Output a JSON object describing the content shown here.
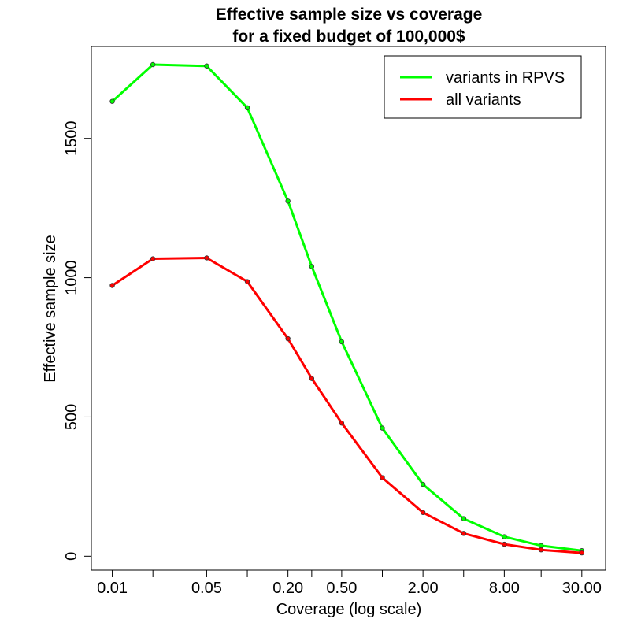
{
  "chart_data": {
    "type": "line",
    "title": "Effective sample size vs coverage",
    "subtitle": "for a fixed budget of 100,000$",
    "xlabel": "Coverage (log scale)",
    "ylabel": "Effective sample size",
    "x_scale": "log",
    "x": [
      0.01,
      0.02,
      0.05,
      0.1,
      0.2,
      0.3,
      0.5,
      1,
      2,
      4,
      8,
      15,
      30
    ],
    "xticks": [
      0.01,
      0.02,
      0.05,
      0.1,
      0.2,
      0.3,
      0.5,
      1,
      2,
      4,
      8,
      15,
      30
    ],
    "xtick_labels": [
      "0.01",
      "",
      "0.05",
      "",
      "0.20",
      "",
      "0.50",
      "",
      "2.00",
      "",
      "8.00",
      "",
      "30.00"
    ],
    "xlim": [
      0.007,
      45
    ],
    "ylim": [
      -50,
      1830
    ],
    "yticks": [
      0,
      500,
      1000,
      1500
    ],
    "ytick_labels": [
      "0",
      "500",
      "1000",
      "1500"
    ],
    "grid": false,
    "legend_position": "top-right",
    "series": [
      {
        "name": "variants in RPVS",
        "color": "#00ff00",
        "values": [
          1633,
          1765,
          1760,
          1610,
          1275,
          1040,
          770,
          460,
          258,
          135,
          70,
          38,
          20
        ]
      },
      {
        "name": "all variants",
        "color": "#ff0000",
        "values": [
          972,
          1068,
          1071,
          986,
          781,
          638,
          478,
          282,
          157,
          82,
          43,
          23,
          12
        ]
      }
    ]
  }
}
